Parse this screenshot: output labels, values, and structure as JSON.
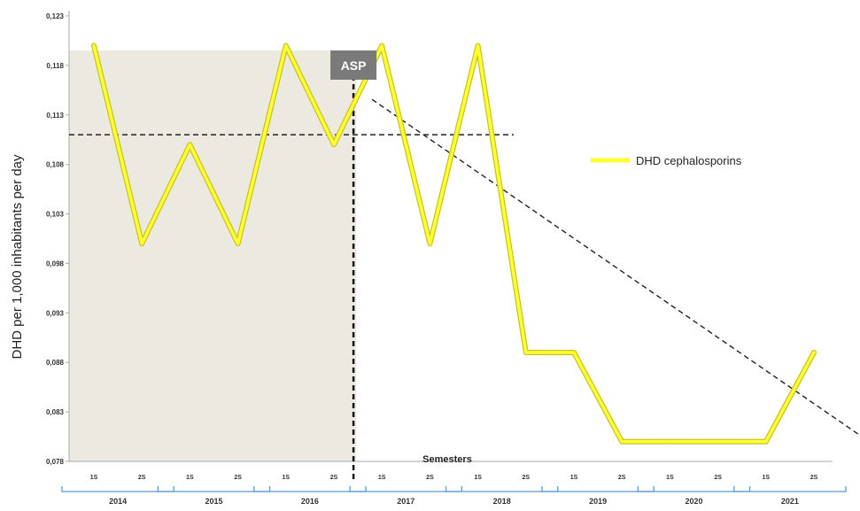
{
  "chart_data": {
    "type": "line",
    "ylabel": "DHD per 1,000 inhabitants per day",
    "xlabel": "Semesters",
    "y_ticks": [
      "0,078",
      "0,083",
      "0,088",
      "0,093",
      "0,098",
      "0,103",
      "0,108",
      "0,113",
      "0,118",
      "0,123"
    ],
    "ylim": [
      0.078,
      0.123
    ],
    "semester_labels": [
      "1S",
      "2S",
      "1S",
      "2S",
      "1S",
      "2S",
      "1S",
      "2S",
      "1S",
      "2S",
      "1S",
      "2S",
      "1S",
      "2S",
      "1S",
      "2S"
    ],
    "years": [
      "2014",
      "2015",
      "2016",
      "2017",
      "2018",
      "2019",
      "2020",
      "2021"
    ],
    "series": [
      {
        "name": "DHD cephalosporins",
        "color": "#ffff33",
        "values": [
          0.12,
          0.1,
          0.11,
          0.1,
          0.12,
          0.11,
          0.12,
          0.1,
          0.12,
          0.089,
          0.089,
          0.08,
          0.08,
          0.08,
          0.08,
          0.089
        ]
      }
    ],
    "pre_intervention_mean": 0.111,
    "trend_line": {
      "start": [
        6.5,
        0.116
      ],
      "end": [
        16.5,
        0.08
      ]
    },
    "annotation": "ASP",
    "intervention_index": 6,
    "shaded_region": "2014-2016",
    "legend_position": "right"
  },
  "colors": {
    "shade": "#ece9e1",
    "asp_box": "#7a7a7a",
    "line_fill": "#ffff33",
    "line_edge": "#c8c41e",
    "axis": "#aaaaaa",
    "bracket": "#5b9bd5"
  }
}
